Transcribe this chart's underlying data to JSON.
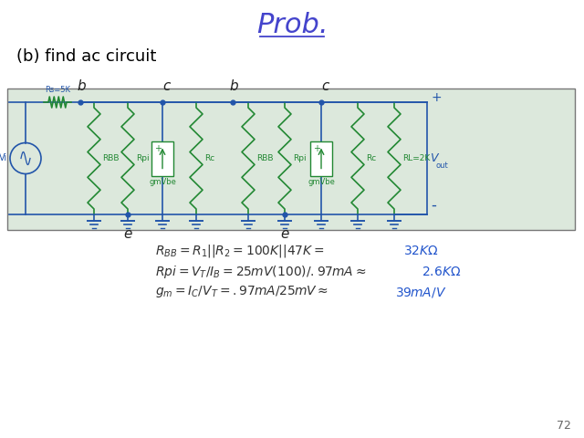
{
  "title": "Prob.",
  "title_color": "#4444cc",
  "title_fontsize": 22,
  "subtitle": "(b) find ac circuit",
  "subtitle_fontsize": 13,
  "subtitle_color": "#000000",
  "background_color": "#ffffff",
  "circuit_bg": "#dce8dc",
  "circuit_line_color": "#2255aa",
  "circuit_green": "#228833",
  "page_number": "72",
  "blue_color": "#2255cc",
  "eq_fontsize": 10
}
